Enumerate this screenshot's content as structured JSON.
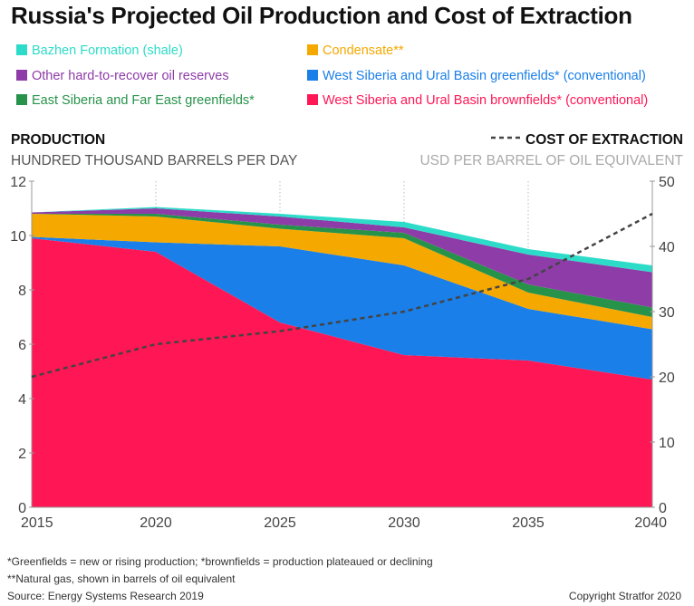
{
  "title": "Russia's Projected Oil Production and Cost of Extraction",
  "legend": [
    {
      "label": "Bazhen Formation (shale)",
      "color": "#2ddcc8"
    },
    {
      "label": "Condensate**",
      "color": "#f5a800"
    },
    {
      "label": "Other hard-to-recover oil reserves",
      "color": "#8e3ca8"
    },
    {
      "label": "West Siberia and Ural Basin greenfields* (conventional)",
      "color": "#1a7fe8"
    },
    {
      "label": "East Siberia and Far East greenfields*",
      "color": "#27924a"
    },
    {
      "label": "West Siberia and Ural Basin brownfields* (conventional)",
      "color": "#ff1654"
    }
  ],
  "left_axis": {
    "title": "PRODUCTION",
    "subtitle": "HUNDRED THOUSAND BARRELS PER DAY"
  },
  "right_axis": {
    "title": "COST OF EXTRACTION",
    "subtitle": "USD PER BARREL OF OIL EQUIVALENT"
  },
  "footnotes": {
    "greenfields": "*Greenfields = new or rising production; *brownfields = production plateaued or declining",
    "natural_gas": "**Natural gas, shown in barrels of oil equivalent",
    "source": "Source: Energy Systems Research 2019",
    "copyright": "Copyright Stratfor 2020"
  },
  "chart_data": {
    "type": "area",
    "x": [
      2015,
      2020,
      2025,
      2030,
      2035,
      2040
    ],
    "xlim": [
      2015,
      2040
    ],
    "ylim": [
      0,
      12
    ],
    "y_ticks": [
      0,
      2,
      4,
      6,
      8,
      10,
      12
    ],
    "y2lim": [
      0,
      50
    ],
    "y2_ticks": [
      0,
      10,
      20,
      30,
      40,
      50
    ],
    "grid": "vertical",
    "series": [
      {
        "name": "West Siberia and Ural Basin brownfields* (conventional)",
        "color": "#ff1654",
        "values": [
          9.9,
          9.4,
          6.8,
          5.6,
          5.4,
          4.7
        ]
      },
      {
        "name": "West Siberia and Ural Basin greenfields* (conventional)",
        "color": "#1a7fe8",
        "values": [
          0.05,
          0.35,
          2.8,
          3.3,
          1.9,
          1.85
        ]
      },
      {
        "name": "Condensate**",
        "color": "#f5a800",
        "values": [
          0.85,
          0.95,
          0.65,
          1.0,
          0.6,
          0.45
        ]
      },
      {
        "name": "East Siberia and Far East greenfields*",
        "color": "#27924a",
        "values": [
          0.0,
          0.1,
          0.15,
          0.2,
          0.3,
          0.35
        ]
      },
      {
        "name": "Other hard-to-recover oil reserves",
        "color": "#8e3ca8",
        "values": [
          0.05,
          0.2,
          0.3,
          0.2,
          1.1,
          1.3
        ]
      },
      {
        "name": "Bazhen Formation (shale)",
        "color": "#2ddcc8",
        "values": [
          0.0,
          0.05,
          0.1,
          0.2,
          0.2,
          0.25
        ]
      }
    ],
    "line": {
      "name": "COST OF EXTRACTION",
      "axis": "right",
      "style": "dashed",
      "color": "#444444",
      "values": [
        20,
        25,
        27,
        30,
        35,
        45
      ]
    }
  }
}
